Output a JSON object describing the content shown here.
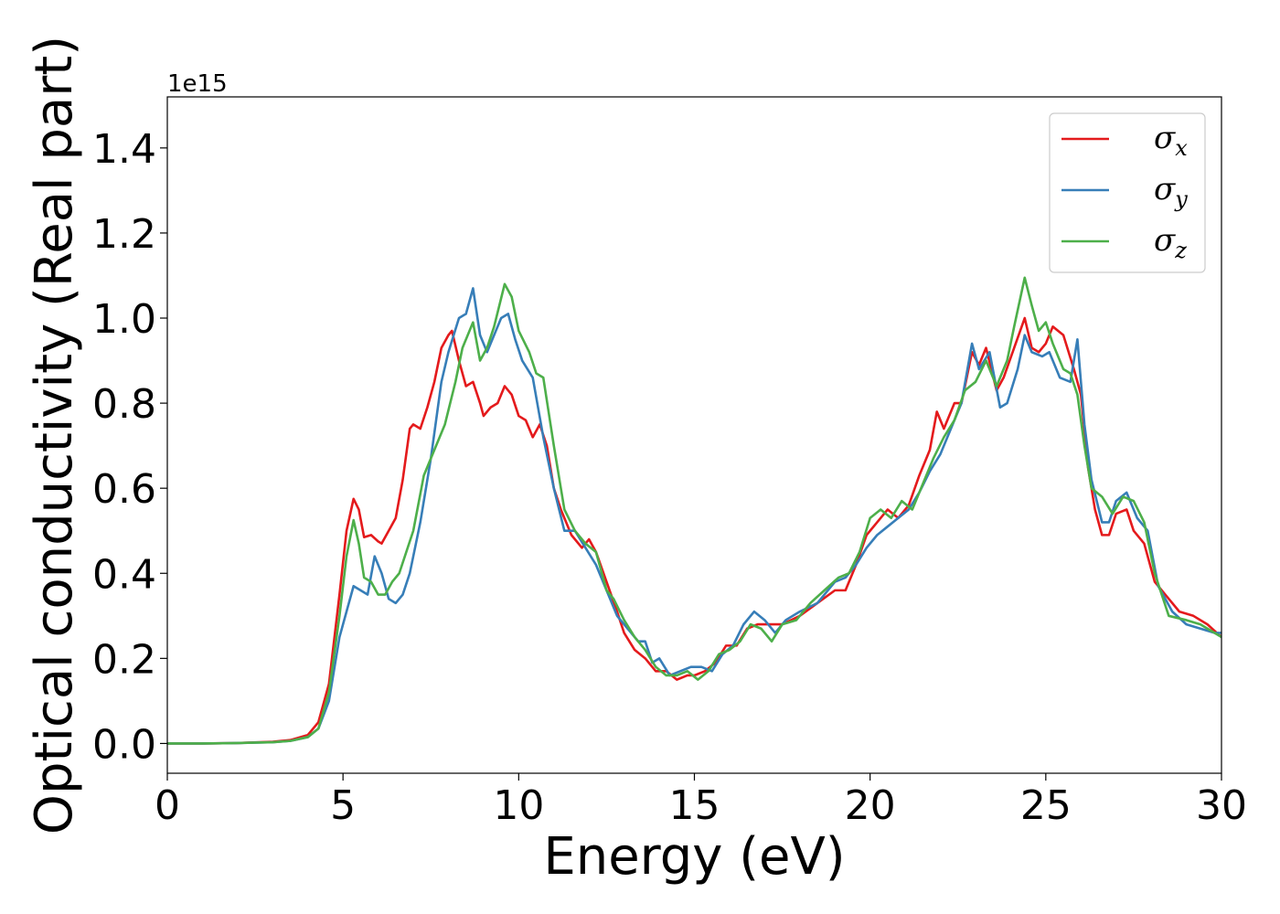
{
  "chart_data": {
    "type": "line",
    "xlabel": "Energy (eV)",
    "ylabel": "Optical conductivity (Real part)",
    "y_offset_text": "1e15",
    "xlim": [
      0,
      30
    ],
    "ylim": [
      -0.07,
      1.52
    ],
    "x_ticks": [
      0,
      5,
      10,
      15,
      20,
      25,
      30
    ],
    "x_tick_labels": [
      "0",
      "5",
      "10",
      "15",
      "20",
      "25",
      "30"
    ],
    "y_ticks": [
      0.0,
      0.2,
      0.4,
      0.6,
      0.8,
      1.0,
      1.2,
      1.4
    ],
    "y_tick_labels": [
      "0.0",
      "0.2",
      "0.4",
      "0.6",
      "0.8",
      "1.0",
      "1.2",
      "1.4"
    ],
    "grid": false,
    "legend_position": "top-right",
    "series": [
      {
        "name": "σx",
        "symbol": "σ",
        "subscript": "x",
        "color": "#e41a1c",
        "points": [
          [
            0,
            0
          ],
          [
            1,
            0
          ],
          [
            2,
            0.001
          ],
          [
            3,
            0.004
          ],
          [
            3.5,
            0.008
          ],
          [
            4,
            0.02
          ],
          [
            4.3,
            0.05
          ],
          [
            4.6,
            0.14
          ],
          [
            4.9,
            0.35
          ],
          [
            5.1,
            0.5
          ],
          [
            5.3,
            0.575
          ],
          [
            5.45,
            0.55
          ],
          [
            5.6,
            0.485
          ],
          [
            5.8,
            0.49
          ],
          [
            6,
            0.475
          ],
          [
            6.1,
            0.47
          ],
          [
            6.3,
            0.5
          ],
          [
            6.5,
            0.53
          ],
          [
            6.7,
            0.62
          ],
          [
            6.9,
            0.74
          ],
          [
            7,
            0.75
          ],
          [
            7.2,
            0.74
          ],
          [
            7.4,
            0.79
          ],
          [
            7.6,
            0.85
          ],
          [
            7.8,
            0.93
          ],
          [
            8,
            0.96
          ],
          [
            8.1,
            0.97
          ],
          [
            8.3,
            0.9
          ],
          [
            8.5,
            0.84
          ],
          [
            8.7,
            0.85
          ],
          [
            8.9,
            0.8
          ],
          [
            9,
            0.77
          ],
          [
            9.2,
            0.79
          ],
          [
            9.4,
            0.8
          ],
          [
            9.6,
            0.84
          ],
          [
            9.8,
            0.82
          ],
          [
            10,
            0.77
          ],
          [
            10.2,
            0.76
          ],
          [
            10.4,
            0.72
          ],
          [
            10.6,
            0.75
          ],
          [
            10.8,
            0.7
          ],
          [
            11,
            0.6
          ],
          [
            11.2,
            0.55
          ],
          [
            11.5,
            0.49
          ],
          [
            11.8,
            0.46
          ],
          [
            12,
            0.48
          ],
          [
            12.2,
            0.45
          ],
          [
            12.5,
            0.38
          ],
          [
            12.8,
            0.31
          ],
          [
            13,
            0.26
          ],
          [
            13.3,
            0.22
          ],
          [
            13.6,
            0.2
          ],
          [
            13.9,
            0.17
          ],
          [
            14.2,
            0.17
          ],
          [
            14.5,
            0.15
          ],
          [
            14.8,
            0.16
          ],
          [
            15,
            0.16
          ],
          [
            15.3,
            0.17
          ],
          [
            15.6,
            0.19
          ],
          [
            15.9,
            0.23
          ],
          [
            16.2,
            0.23
          ],
          [
            16.5,
            0.27
          ],
          [
            16.8,
            0.28
          ],
          [
            17,
            0.28
          ],
          [
            17.5,
            0.28
          ],
          [
            18,
            0.3
          ],
          [
            18.5,
            0.33
          ],
          [
            19,
            0.36
          ],
          [
            19.3,
            0.36
          ],
          [
            19.6,
            0.42
          ],
          [
            19.9,
            0.49
          ],
          [
            20.2,
            0.52
          ],
          [
            20.5,
            0.55
          ],
          [
            20.8,
            0.53
          ],
          [
            21.1,
            0.56
          ],
          [
            21.4,
            0.63
          ],
          [
            21.7,
            0.69
          ],
          [
            21.9,
            0.78
          ],
          [
            22.1,
            0.74
          ],
          [
            22.4,
            0.8
          ],
          [
            22.6,
            0.8
          ],
          [
            22.9,
            0.92
          ],
          [
            23.1,
            0.89
          ],
          [
            23.3,
            0.93
          ],
          [
            23.6,
            0.83
          ],
          [
            23.8,
            0.86
          ],
          [
            24.1,
            0.93
          ],
          [
            24.4,
            1.0
          ],
          [
            24.6,
            0.93
          ],
          [
            24.8,
            0.92
          ],
          [
            25,
            0.94
          ],
          [
            25.2,
            0.98
          ],
          [
            25.5,
            0.96
          ],
          [
            25.8,
            0.88
          ],
          [
            26,
            0.82
          ],
          [
            26.2,
            0.65
          ],
          [
            26.4,
            0.55
          ],
          [
            26.6,
            0.49
          ],
          [
            26.8,
            0.49
          ],
          [
            27,
            0.54
          ],
          [
            27.3,
            0.55
          ],
          [
            27.5,
            0.5
          ],
          [
            27.8,
            0.47
          ],
          [
            28.1,
            0.38
          ],
          [
            28.4,
            0.35
          ],
          [
            28.8,
            0.31
          ],
          [
            29.2,
            0.3
          ],
          [
            29.6,
            0.28
          ],
          [
            30,
            0.25
          ]
        ]
      },
      {
        "name": "σy",
        "symbol": "σ",
        "subscript": "y",
        "color": "#377eb8",
        "points": [
          [
            0,
            0
          ],
          [
            1,
            0
          ],
          [
            2,
            0.001
          ],
          [
            3,
            0.003
          ],
          [
            3.5,
            0.006
          ],
          [
            4,
            0.015
          ],
          [
            4.3,
            0.035
          ],
          [
            4.6,
            0.1
          ],
          [
            4.9,
            0.25
          ],
          [
            5.1,
            0.31
          ],
          [
            5.3,
            0.37
          ],
          [
            5.5,
            0.36
          ],
          [
            5.7,
            0.35
          ],
          [
            5.9,
            0.44
          ],
          [
            6.1,
            0.4
          ],
          [
            6.3,
            0.34
          ],
          [
            6.5,
            0.33
          ],
          [
            6.7,
            0.35
          ],
          [
            6.9,
            0.4
          ],
          [
            7.2,
            0.52
          ],
          [
            7.5,
            0.67
          ],
          [
            7.8,
            0.85
          ],
          [
            8,
            0.92
          ],
          [
            8.3,
            1.0
          ],
          [
            8.5,
            1.01
          ],
          [
            8.7,
            1.07
          ],
          [
            8.9,
            0.96
          ],
          [
            9.1,
            0.92
          ],
          [
            9.3,
            0.96
          ],
          [
            9.5,
            1.0
          ],
          [
            9.7,
            1.01
          ],
          [
            9.9,
            0.95
          ],
          [
            10.1,
            0.9
          ],
          [
            10.4,
            0.86
          ],
          [
            10.7,
            0.72
          ],
          [
            11,
            0.6
          ],
          [
            11.3,
            0.5
          ],
          [
            11.6,
            0.5
          ],
          [
            11.9,
            0.46
          ],
          [
            12.2,
            0.42
          ],
          [
            12.5,
            0.36
          ],
          [
            12.8,
            0.3
          ],
          [
            13.1,
            0.27
          ],
          [
            13.4,
            0.24
          ],
          [
            13.6,
            0.24
          ],
          [
            13.8,
            0.19
          ],
          [
            14,
            0.2
          ],
          [
            14.3,
            0.16
          ],
          [
            14.6,
            0.17
          ],
          [
            14.9,
            0.18
          ],
          [
            15.2,
            0.18
          ],
          [
            15.5,
            0.17
          ],
          [
            15.8,
            0.21
          ],
          [
            16.1,
            0.23
          ],
          [
            16.4,
            0.28
          ],
          [
            16.7,
            0.31
          ],
          [
            17,
            0.29
          ],
          [
            17.3,
            0.26
          ],
          [
            17.6,
            0.29
          ],
          [
            18,
            0.31
          ],
          [
            18.5,
            0.33
          ],
          [
            19,
            0.38
          ],
          [
            19.3,
            0.39
          ],
          [
            19.6,
            0.42
          ],
          [
            19.9,
            0.46
          ],
          [
            20.2,
            0.49
          ],
          [
            20.5,
            0.51
          ],
          [
            20.8,
            0.53
          ],
          [
            21.1,
            0.55
          ],
          [
            21.4,
            0.59
          ],
          [
            21.7,
            0.64
          ],
          [
            22,
            0.68
          ],
          [
            22.3,
            0.74
          ],
          [
            22.6,
            0.8
          ],
          [
            22.9,
            0.94
          ],
          [
            23.1,
            0.88
          ],
          [
            23.4,
            0.92
          ],
          [
            23.7,
            0.79
          ],
          [
            23.9,
            0.8
          ],
          [
            24.2,
            0.88
          ],
          [
            24.4,
            0.96
          ],
          [
            24.6,
            0.92
          ],
          [
            24.9,
            0.91
          ],
          [
            25.1,
            0.92
          ],
          [
            25.4,
            0.86
          ],
          [
            25.7,
            0.85
          ],
          [
            25.9,
            0.95
          ],
          [
            26.1,
            0.75
          ],
          [
            26.3,
            0.62
          ],
          [
            26.6,
            0.52
          ],
          [
            26.8,
            0.52
          ],
          [
            27,
            0.57
          ],
          [
            27.3,
            0.59
          ],
          [
            27.6,
            0.53
          ],
          [
            27.9,
            0.5
          ],
          [
            28.2,
            0.37
          ],
          [
            28.6,
            0.31
          ],
          [
            29,
            0.28
          ],
          [
            29.4,
            0.27
          ],
          [
            29.8,
            0.26
          ],
          [
            30,
            0.26
          ]
        ]
      },
      {
        "name": "σz",
        "symbol": "σ",
        "subscript": "z",
        "color": "#4daf4a",
        "points": [
          [
            0,
            0
          ],
          [
            1,
            0
          ],
          [
            2,
            0.001
          ],
          [
            3,
            0.003
          ],
          [
            3.5,
            0.006
          ],
          [
            4,
            0.015
          ],
          [
            4.3,
            0.035
          ],
          [
            4.6,
            0.12
          ],
          [
            4.9,
            0.3
          ],
          [
            5.1,
            0.44
          ],
          [
            5.3,
            0.525
          ],
          [
            5.45,
            0.47
          ],
          [
            5.6,
            0.39
          ],
          [
            5.8,
            0.38
          ],
          [
            6,
            0.35
          ],
          [
            6.2,
            0.35
          ],
          [
            6.4,
            0.38
          ],
          [
            6.6,
            0.4
          ],
          [
            6.8,
            0.45
          ],
          [
            7,
            0.5
          ],
          [
            7.3,
            0.63
          ],
          [
            7.6,
            0.69
          ],
          [
            7.9,
            0.75
          ],
          [
            8.2,
            0.85
          ],
          [
            8.4,
            0.93
          ],
          [
            8.7,
            0.99
          ],
          [
            8.9,
            0.9
          ],
          [
            9.1,
            0.93
          ],
          [
            9.3,
            0.98
          ],
          [
            9.6,
            1.08
          ],
          [
            9.8,
            1.05
          ],
          [
            10,
            0.97
          ],
          [
            10.3,
            0.92
          ],
          [
            10.5,
            0.87
          ],
          [
            10.7,
            0.86
          ],
          [
            11,
            0.7
          ],
          [
            11.3,
            0.55
          ],
          [
            11.6,
            0.5
          ],
          [
            11.9,
            0.47
          ],
          [
            12.2,
            0.45
          ],
          [
            12.5,
            0.36
          ],
          [
            12.7,
            0.34
          ],
          [
            13,
            0.29
          ],
          [
            13.3,
            0.25
          ],
          [
            13.6,
            0.22
          ],
          [
            13.9,
            0.18
          ],
          [
            14.2,
            0.16
          ],
          [
            14.5,
            0.16
          ],
          [
            14.8,
            0.17
          ],
          [
            15.1,
            0.15
          ],
          [
            15.4,
            0.17
          ],
          [
            15.7,
            0.21
          ],
          [
            16,
            0.22
          ],
          [
            16.3,
            0.24
          ],
          [
            16.6,
            0.28
          ],
          [
            16.9,
            0.27
          ],
          [
            17.2,
            0.24
          ],
          [
            17.5,
            0.28
          ],
          [
            17.9,
            0.29
          ],
          [
            18.3,
            0.33
          ],
          [
            18.7,
            0.36
          ],
          [
            19.1,
            0.39
          ],
          [
            19.4,
            0.4
          ],
          [
            19.7,
            0.45
          ],
          [
            20,
            0.53
          ],
          [
            20.3,
            0.55
          ],
          [
            20.6,
            0.53
          ],
          [
            20.9,
            0.57
          ],
          [
            21.2,
            0.55
          ],
          [
            21.5,
            0.61
          ],
          [
            21.8,
            0.67
          ],
          [
            22.1,
            0.72
          ],
          [
            22.4,
            0.76
          ],
          [
            22.7,
            0.83
          ],
          [
            23,
            0.85
          ],
          [
            23.3,
            0.9
          ],
          [
            23.6,
            0.84
          ],
          [
            23.9,
            0.9
          ],
          [
            24.1,
            0.98
          ],
          [
            24.4,
            1.095
          ],
          [
            24.6,
            1.03
          ],
          [
            24.8,
            0.97
          ],
          [
            25,
            0.99
          ],
          [
            25.2,
            0.94
          ],
          [
            25.5,
            0.88
          ],
          [
            25.7,
            0.87
          ],
          [
            25.9,
            0.82
          ],
          [
            26.1,
            0.7
          ],
          [
            26.3,
            0.6
          ],
          [
            26.6,
            0.58
          ],
          [
            26.9,
            0.54
          ],
          [
            27.2,
            0.58
          ],
          [
            27.5,
            0.57
          ],
          [
            27.8,
            0.52
          ],
          [
            28.1,
            0.4
          ],
          [
            28.5,
            0.3
          ],
          [
            29,
            0.29
          ],
          [
            29.4,
            0.28
          ],
          [
            29.8,
            0.26
          ],
          [
            30,
            0.25
          ]
        ]
      }
    ]
  }
}
